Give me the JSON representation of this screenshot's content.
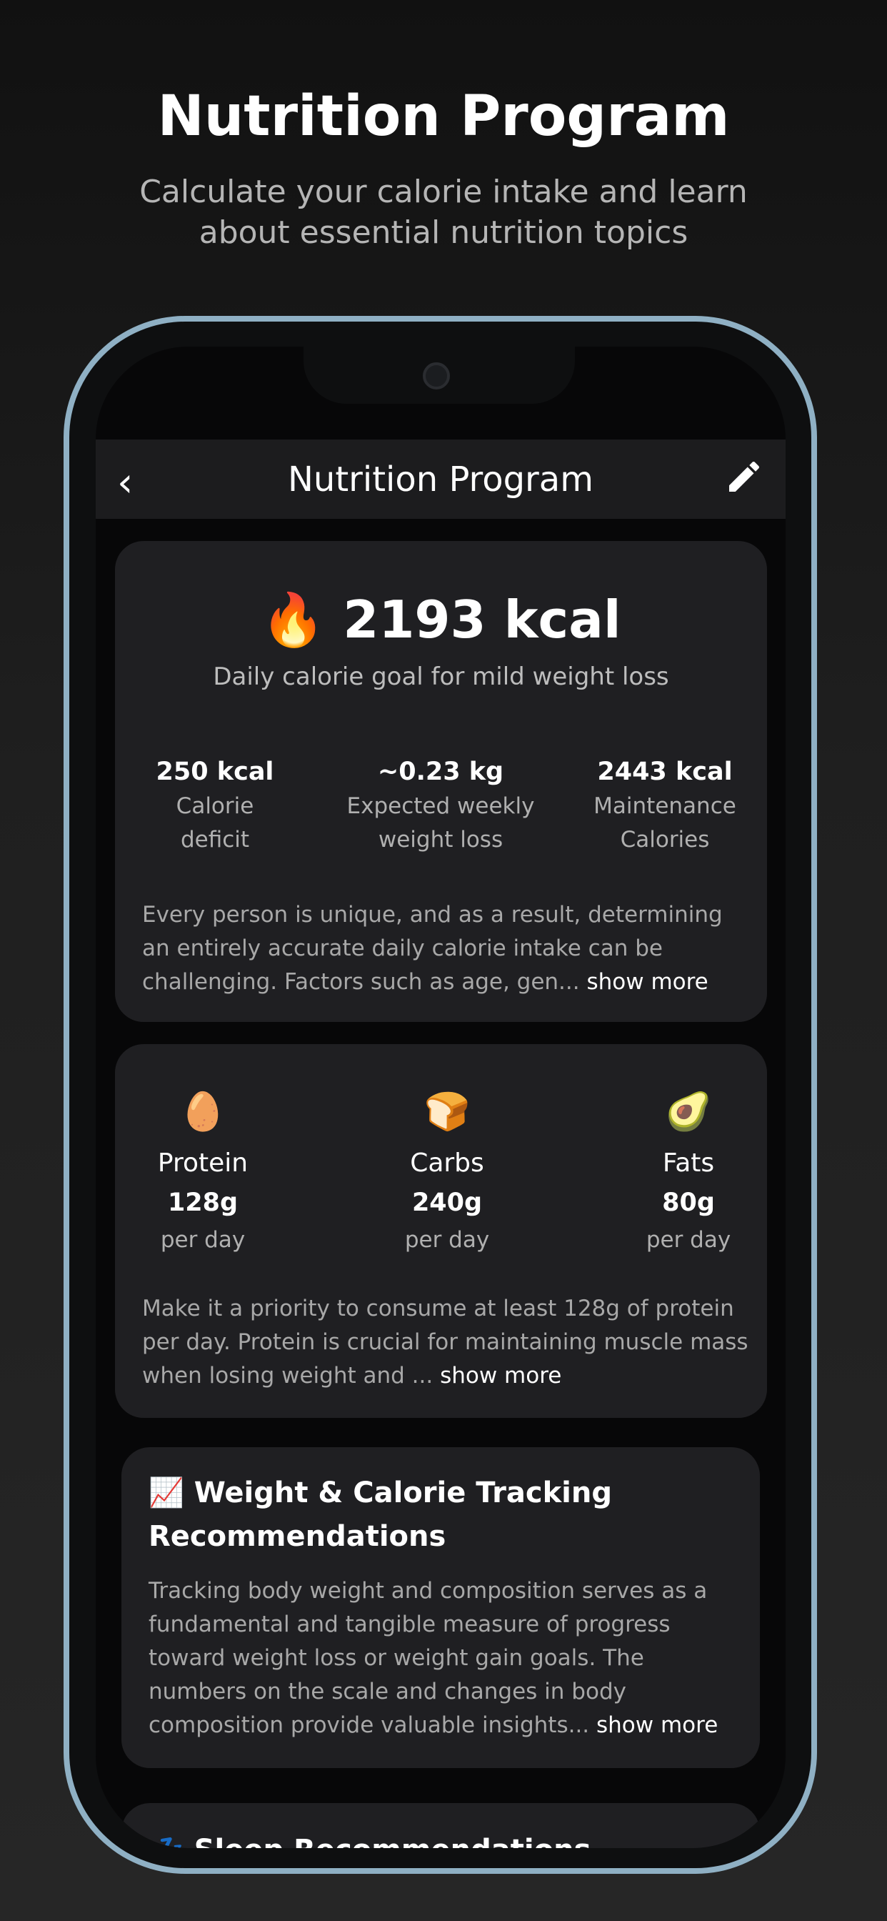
{
  "hero": {
    "title": "Nutrition Program",
    "subtitle": "Calculate your calorie intake and learn about essential nutrition topics"
  },
  "navbar": {
    "title": "Nutrition Program",
    "back_icon": "chevron-left-icon",
    "edit_icon": "pencil-icon"
  },
  "calorie_card": {
    "emoji": "🔥",
    "value": "2193 kcal",
    "caption": "Daily calorie goal for mild weight loss",
    "stats": [
      {
        "value": "250 kcal",
        "label": "Calorie deficit"
      },
      {
        "value": "~0.23 kg",
        "label": "Expected weekly weight loss"
      },
      {
        "value": "2443 kcal",
        "label": "Maintenance Calories"
      }
    ],
    "text": "Every person is unique, and as a result, determining an entirely accurate daily calorie intake can be challenging. Factors such as age, gen...",
    "more": " show more"
  },
  "macro_card": {
    "macros": [
      {
        "emoji": "🥚",
        "name": "Protein",
        "amount": "128g",
        "unit": "per day"
      },
      {
        "emoji": "🍞",
        "name": "Carbs",
        "amount": "240g",
        "unit": "per day"
      },
      {
        "emoji": "🥑",
        "name": "Fats",
        "amount": "80g",
        "unit": "per day"
      }
    ],
    "text": "Make it a priority to consume at least 128g of protein per day. Protein is crucial for maintaining muscle mass when losing weight and ...",
    "more": " show more"
  },
  "tracking_card": {
    "title": "📈 Weight & Calorie Tracking Recommendations",
    "text": "Tracking body weight and composition serves as a fundamental and tangible measure of progress toward weight loss or weight gain goals. The numbers on the scale and changes in body composition provide valuable insights...",
    "more": " show more"
  },
  "sleep_card": {
    "title": "💤 Sleep Recommendations"
  }
}
